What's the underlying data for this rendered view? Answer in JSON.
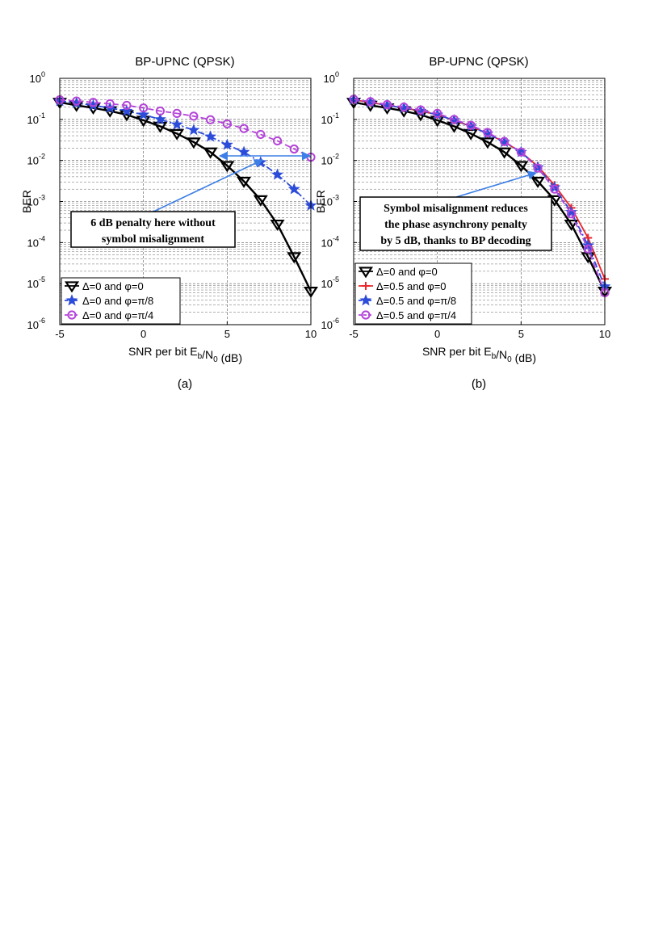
{
  "chart_data": [
    {
      "type": "line",
      "panel_label": "(a)",
      "title": "BP-UPNC (QPSK)",
      "xlabel": "SNR per bit E_b/N_0 (dB)",
      "ylabel": "BER",
      "xlim": [
        -5,
        10
      ],
      "ylim": [
        1e-06,
        1
      ],
      "yscale": "log",
      "grid": true,
      "legend_position": "bottom-left",
      "x_ticks": [
        "-5",
        "0",
        "5",
        "10"
      ],
      "y_ticks": [
        "10^0",
        "10^-1",
        "10^-2",
        "10^-3",
        "10^-4",
        "10^-5",
        "10^-6"
      ],
      "x": [
        -5,
        -4,
        -3,
        -2,
        -1,
        0,
        1,
        2,
        3,
        4,
        5,
        6,
        7,
        8,
        9,
        10
      ],
      "series": [
        {
          "name": "Δ=0 and φ=0",
          "color": "#000000",
          "marker": "triangle-down",
          "line": "solid",
          "values": [
            0.26,
            0.22,
            0.19,
            0.16,
            0.13,
            0.095,
            0.068,
            0.045,
            0.028,
            0.016,
            0.0075,
            0.0031,
            0.0011,
            0.00028,
            4.5e-05,
            6.5e-06
          ]
        },
        {
          "name": "Δ=0 and φ=π/8",
          "color": "#2b4bd9",
          "marker": "star",
          "line": "dashdot",
          "values": [
            0.28,
            0.25,
            0.22,
            0.19,
            0.16,
            0.13,
            0.1,
            0.075,
            0.055,
            0.038,
            0.024,
            0.016,
            0.009,
            0.0045,
            0.002,
            0.0008
          ]
        },
        {
          "name": "Δ=0 and φ=π/4",
          "color": "#b445d9",
          "marker": "circle",
          "line": "dashed",
          "values": [
            0.3,
            0.28,
            0.26,
            0.24,
            0.22,
            0.19,
            0.16,
            0.14,
            0.12,
            0.098,
            0.078,
            0.06,
            0.043,
            0.03,
            0.019,
            0.012
          ]
        }
      ],
      "annotations": [
        {
          "lines": [
            "6 dB penalty here without",
            "symbol misalignment"
          ]
        }
      ]
    },
    {
      "type": "line",
      "panel_label": "(b)",
      "title": "BP-UPNC (QPSK)",
      "xlabel": "SNR per bit E_b/N_0 (dB)",
      "ylabel": "BER",
      "xlim": [
        -5,
        10
      ],
      "ylim": [
        1e-06,
        1
      ],
      "yscale": "log",
      "grid": true,
      "legend_position": "bottom-left",
      "x_ticks": [
        "-5",
        "0",
        "5",
        "10"
      ],
      "y_ticks": [
        "10^0",
        "10^-1",
        "10^-2",
        "10^-3",
        "10^-4",
        "10^-5",
        "10^-6"
      ],
      "x": [
        -5,
        -4,
        -3,
        -2,
        -1,
        0,
        1,
        2,
        3,
        4,
        5,
        6,
        7,
        8,
        9,
        10
      ],
      "series": [
        {
          "name": "Δ=0 and φ=0",
          "color": "#000000",
          "marker": "triangle-down",
          "line": "solid",
          "values": [
            0.26,
            0.22,
            0.19,
            0.16,
            0.13,
            0.095,
            0.068,
            0.045,
            0.028,
            0.016,
            0.0075,
            0.0031,
            0.0011,
            0.00028,
            4.5e-05,
            6.5e-06
          ]
        },
        {
          "name": "Δ=0.5 and φ=0",
          "color": "#e8262b",
          "marker": "plus",
          "line": "solid",
          "values": [
            0.3,
            0.26,
            0.22,
            0.19,
            0.16,
            0.13,
            0.095,
            0.068,
            0.045,
            0.028,
            0.016,
            0.0072,
            0.0025,
            0.0007,
            0.00013,
            1.3e-05
          ]
        },
        {
          "name": "Δ=0.5 and φ=π/8",
          "color": "#2b4bd9",
          "marker": "star",
          "line": "dashdot",
          "values": [
            0.3,
            0.26,
            0.22,
            0.19,
            0.16,
            0.13,
            0.095,
            0.068,
            0.045,
            0.028,
            0.016,
            0.0068,
            0.0022,
            0.00055,
            8.5e-05,
            8.5e-06
          ]
        },
        {
          "name": "Δ=0.5 and φ=π/4",
          "color": "#b445d9",
          "marker": "circle",
          "line": "dashed",
          "values": [
            0.31,
            0.27,
            0.23,
            0.2,
            0.17,
            0.14,
            0.1,
            0.072,
            0.048,
            0.029,
            0.016,
            0.0065,
            0.002,
            0.0005,
            7e-05,
            6e-06
          ]
        }
      ],
      "annotations": [
        {
          "lines": [
            "Symbol misalignment reduces",
            "the phase asynchrony penalty",
            "by 5 dB, thanks to BP decoding"
          ]
        }
      ]
    }
  ]
}
